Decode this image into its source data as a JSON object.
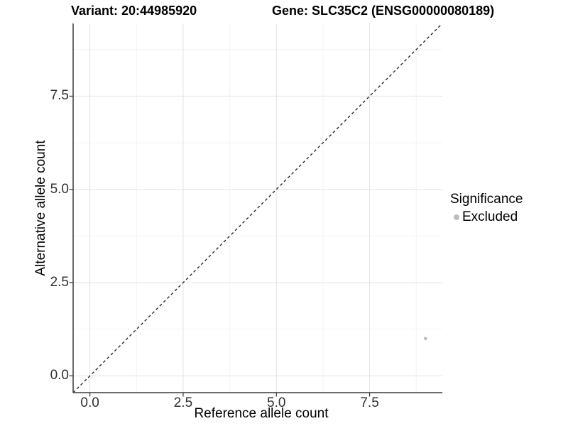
{
  "titles": {
    "variant": "Variant: 20:44985920",
    "gene": "Gene: SLC35C2 (ENSG00000080189)"
  },
  "legend": {
    "title": "Significance",
    "items": [
      {
        "label": "Excluded",
        "color": "#bdbdbd"
      }
    ]
  },
  "chart_data": {
    "type": "scatter",
    "title_left": "Variant: 20:44985920",
    "title_right": "Gene: SLC35C2 (ENSG00000080189)",
    "xlabel": "Reference allele count",
    "ylabel": "Alternative allele count",
    "xlim": [
      -0.45,
      9.45
    ],
    "ylim": [
      -0.45,
      9.45
    ],
    "x_ticks": {
      "values": [
        0,
        2.5,
        5,
        7.5
      ],
      "labels": [
        "0.0",
        "2.5",
        "5.0",
        "7.5"
      ]
    },
    "y_ticks": {
      "values": [
        0,
        2.5,
        5,
        7.5
      ],
      "labels": [
        "0.0",
        "2.5",
        "5.0",
        "7.5"
      ]
    },
    "x_minor_ticks": [
      1.25,
      3.75,
      6.25,
      8.75
    ],
    "y_minor_ticks": [
      1.25,
      3.75,
      6.25,
      8.75
    ],
    "grid": true,
    "legend_position": "right",
    "reference_line": {
      "type": "identity",
      "slope": 1,
      "intercept": 0,
      "style": "dashed"
    },
    "series": [
      {
        "name": "Excluded",
        "significance": "Excluded",
        "color": "#bdbdbd",
        "points": [
          {
            "x": 9,
            "y": 1
          }
        ]
      }
    ]
  },
  "colors": {
    "background": "#ffffff",
    "grid_major": "#e3e3e3",
    "grid_minor": "#f3f3f3",
    "axis_line": "#3a3a3a",
    "tick_mark": "#333333",
    "tick_text": "#303030",
    "dashed_line": "#1a1a1a",
    "point": "#bdbdbd"
  }
}
